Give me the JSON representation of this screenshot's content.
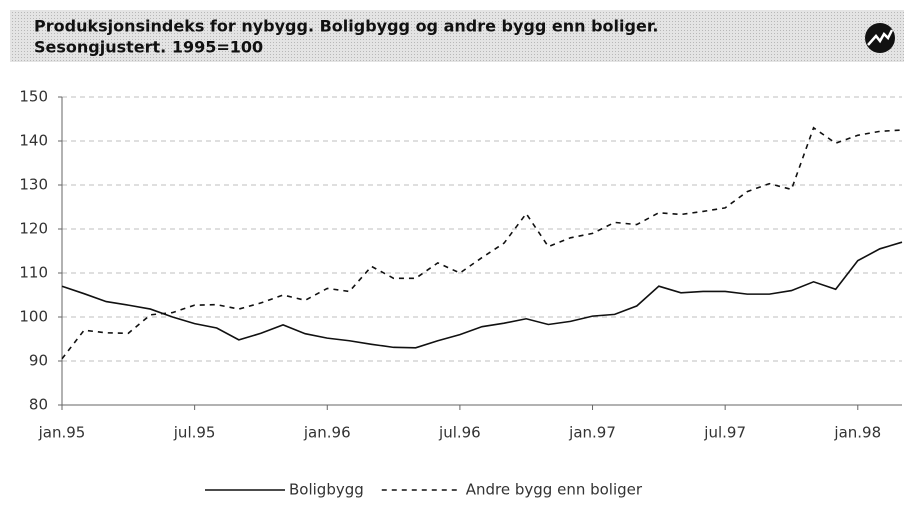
{
  "chart_data": {
    "type": "line",
    "title": "Produksjonsindeks for nybygg. Boligbygg og andre bygg enn boliger.",
    "subtitle": "Sesongjustert. 1995=100",
    "categories": [
      "jan.95",
      null,
      null,
      null,
      null,
      null,
      "jul.95",
      null,
      null,
      null,
      null,
      null,
      "jan.96",
      null,
      null,
      null,
      null,
      null,
      "jul.96",
      null,
      null,
      null,
      null,
      null,
      "jan.97",
      null,
      null,
      null,
      null,
      null,
      "jul.97",
      null,
      null,
      null,
      null,
      null,
      "jan.98",
      null,
      null
    ],
    "series": [
      {
        "name": "Boligbygg",
        "color": "#111111",
        "dash": false,
        "values": [
          107,
          105.3,
          103.5,
          102.7,
          101.8,
          100,
          98.5,
          97.5,
          94.8,
          96.3,
          98.2,
          96.2,
          95.2,
          94.6,
          93.8,
          93.1,
          93,
          94.6,
          96,
          97.8,
          98.6,
          99.6,
          98.3,
          99,
          100.2,
          100.6,
          102.5,
          107,
          105.5,
          105.8,
          105.8,
          105.2,
          105.2,
          106,
          108,
          106.3,
          112.8,
          115.5,
          117
        ]
      },
      {
        "name": "Andre bygg enn boliger",
        "color": "#111111",
        "dash": true,
        "values": [
          90.5,
          97,
          96.4,
          96.3,
          100.5,
          101,
          102.7,
          102.8,
          101.8,
          103.2,
          105,
          103.8,
          106.5,
          105.8,
          111.5,
          108.8,
          108.8,
          112.3,
          110,
          113.5,
          116.8,
          123.5,
          116,
          118,
          119,
          121.5,
          121,
          123.7,
          123.3,
          124,
          124.8,
          128.5,
          130.3,
          129,
          143,
          139.5,
          141.3,
          142.2,
          142.5
        ]
      }
    ],
    "ylim": [
      80,
      150
    ],
    "yticks": [
      80,
      90,
      100,
      110,
      120,
      130,
      140,
      150
    ],
    "grid": true
  }
}
